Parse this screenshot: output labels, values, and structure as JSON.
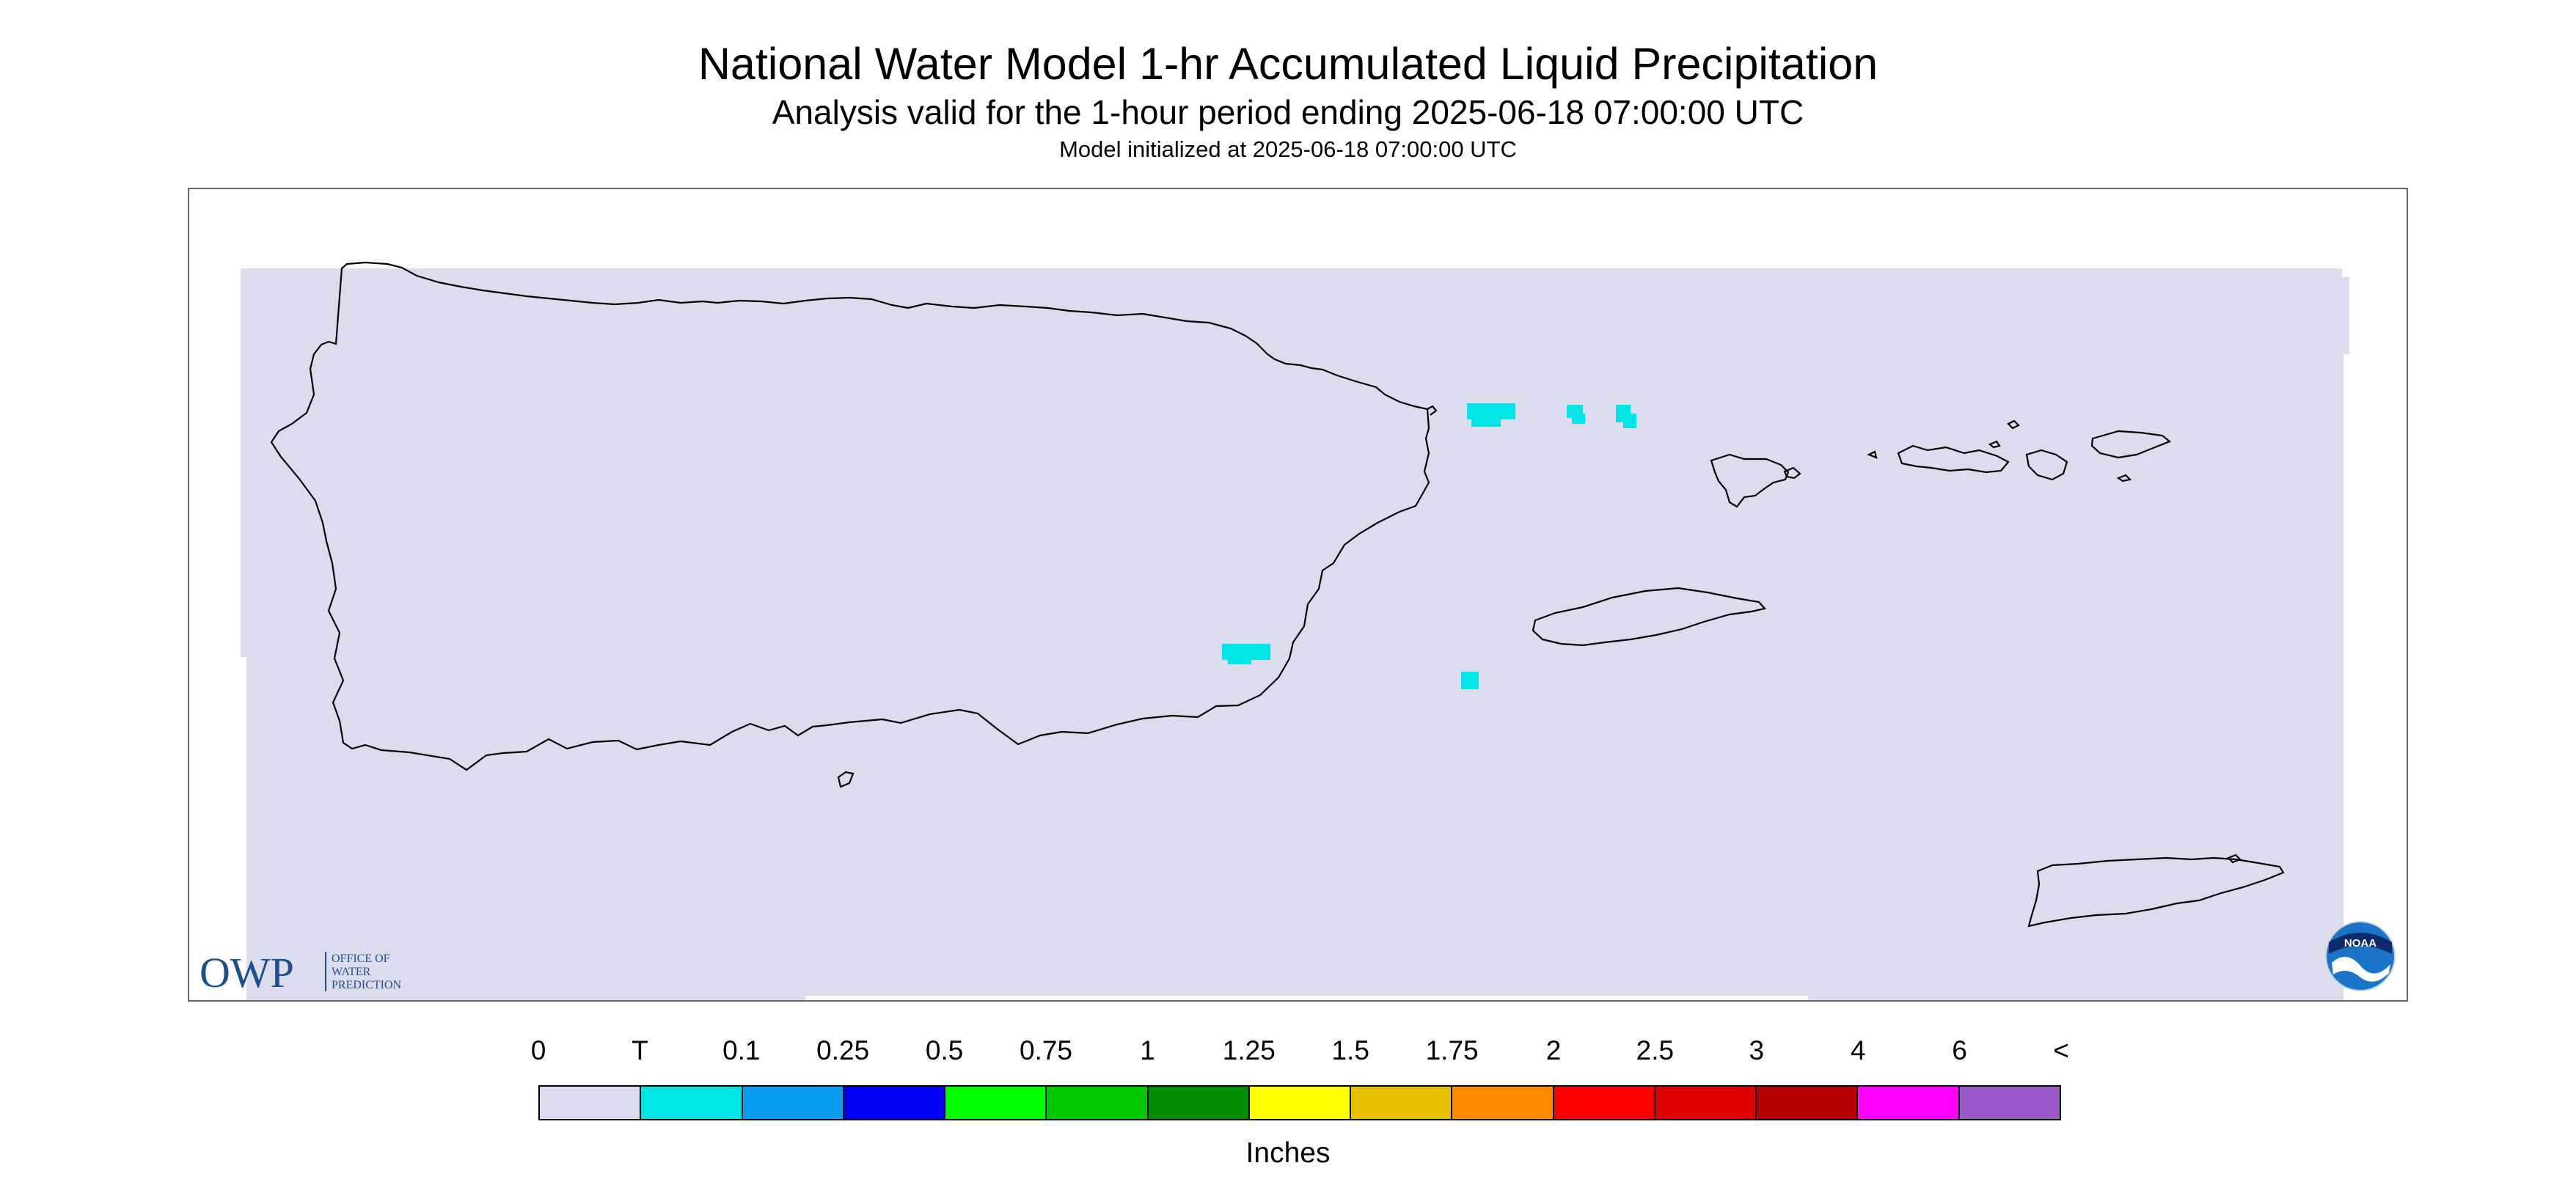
{
  "title": "National Water Model 1-hr Accumulated Liquid Precipitation",
  "subtitle": "Analysis valid for the 1-hour period ending 2025-06-18 07:00:00 UTC",
  "init_line": "Model initialized at 2025-06-18 07:00:00 UTC",
  "map": {
    "region": "Puerto Rico and U.S. Virgin Islands",
    "background_color": "#dcdcef",
    "coastline_color": "#000000",
    "precip_color": "#00e6e6",
    "precip_category": "T"
  },
  "logos": {
    "owp_letters": "OWP",
    "owp_lines": [
      "OFFICE OF",
      "WATER",
      "PREDICTION"
    ],
    "noaa_text": "NOAA"
  },
  "legend": {
    "labels": [
      "0",
      "T",
      "0.1",
      "0.25",
      "0.5",
      "0.75",
      "1",
      "1.25",
      "1.5",
      "1.75",
      "2",
      "2.5",
      "3",
      "4",
      "6",
      "<"
    ],
    "colors": [
      "#dcdcef",
      "#00e6e6",
      "#0a9df0",
      "#0000f5",
      "#00ff00",
      "#00c800",
      "#008c00",
      "#ffff00",
      "#e6c000",
      "#ff8c00",
      "#ff0000",
      "#dc0000",
      "#b40000",
      "#ff00ff",
      "#9b59c8"
    ],
    "units": "Inches"
  }
}
